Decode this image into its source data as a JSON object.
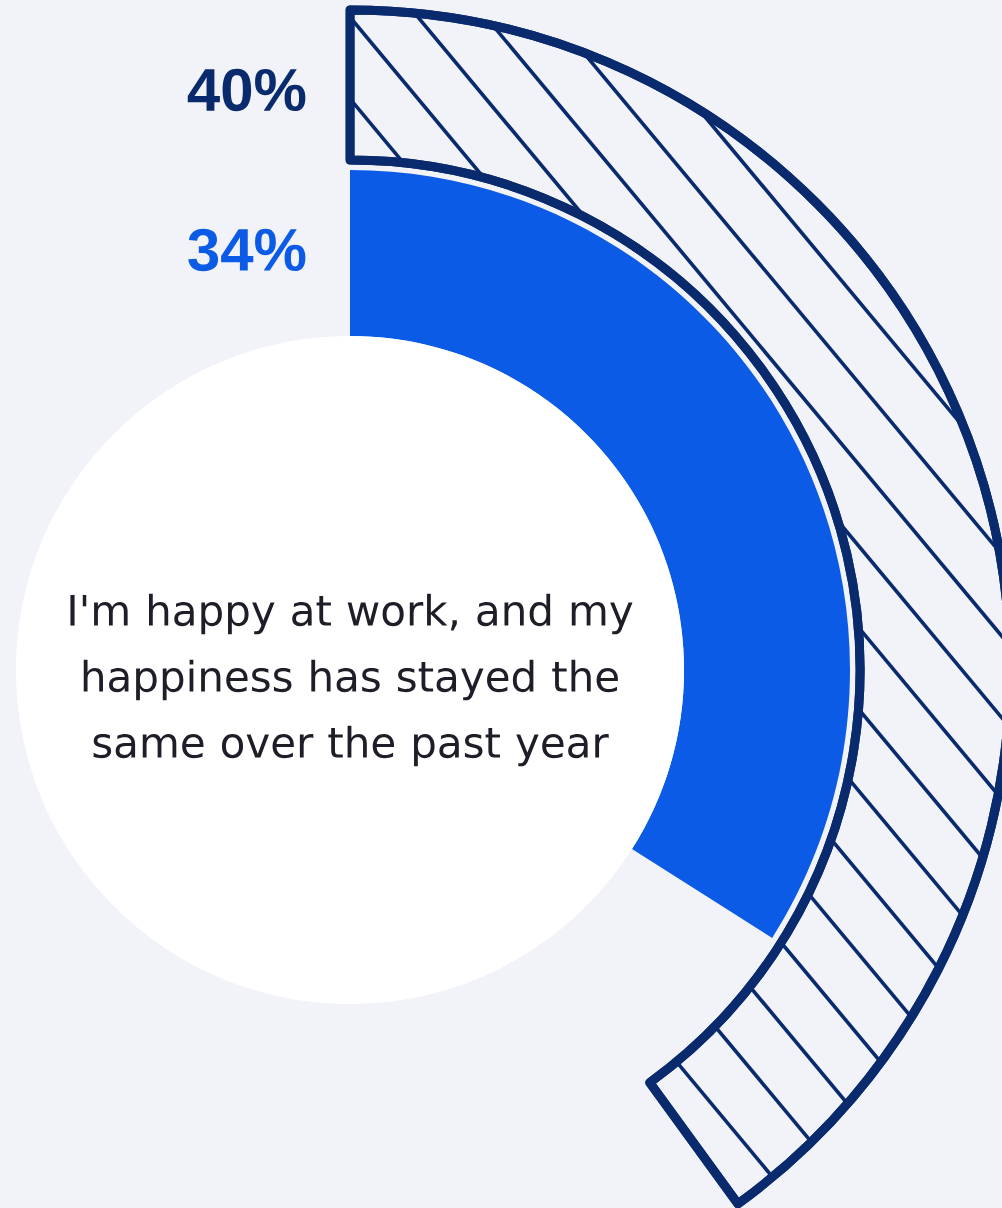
{
  "chart_data": {
    "type": "other",
    "categories": [
      null,
      null
    ],
    "values": [
      40,
      34
    ],
    "colors": [
      "#0a2a6e",
      "#0b5be6"
    ],
    "value_labels": [
      "40%",
      "34%"
    ],
    "annotations": [
      "I'm happy at work, and my happiness has stayed the same over the past year"
    ]
  }
}
